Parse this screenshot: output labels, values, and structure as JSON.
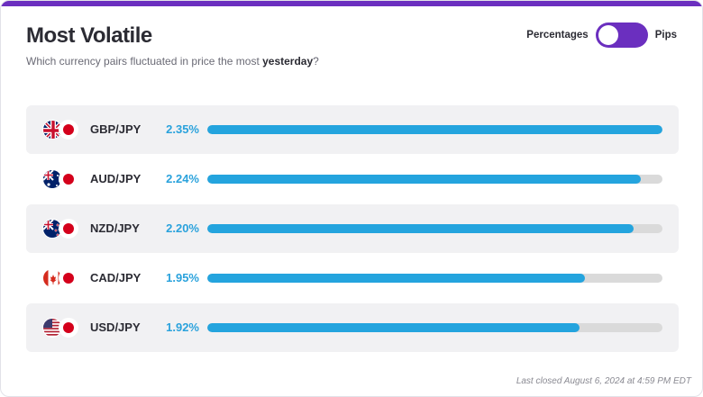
{
  "header": {
    "title": "Most Volatile",
    "subtitle_prefix": "Which currency pairs fluctuated in price the most ",
    "subtitle_bold": "yesterday",
    "subtitle_suffix": "?"
  },
  "toggle": {
    "left_label": "Percentages",
    "right_label": "Pips",
    "accent": "#6b2fbf"
  },
  "pairs": [
    {
      "pair": "GBP/JPY",
      "value_label": "2.35%",
      "value": 2.35,
      "base_flag": "uk-flag-icon"
    },
    {
      "pair": "AUD/JPY",
      "value_label": "2.24%",
      "value": 2.24,
      "base_flag": "australia-flag-icon"
    },
    {
      "pair": "NZD/JPY",
      "value_label": "2.20%",
      "value": 2.2,
      "base_flag": "new-zealand-flag-icon"
    },
    {
      "pair": "CAD/JPY",
      "value_label": "1.95%",
      "value": 1.95,
      "base_flag": "canada-flag-icon"
    },
    {
      "pair": "USD/JPY",
      "value_label": "1.92%",
      "value": 1.92,
      "base_flag": "us-flag-icon"
    }
  ],
  "bar_color": "#24a4de",
  "footer": {
    "last_closed": "Last closed August 6, 2024 at 4:59 PM EDT"
  }
}
